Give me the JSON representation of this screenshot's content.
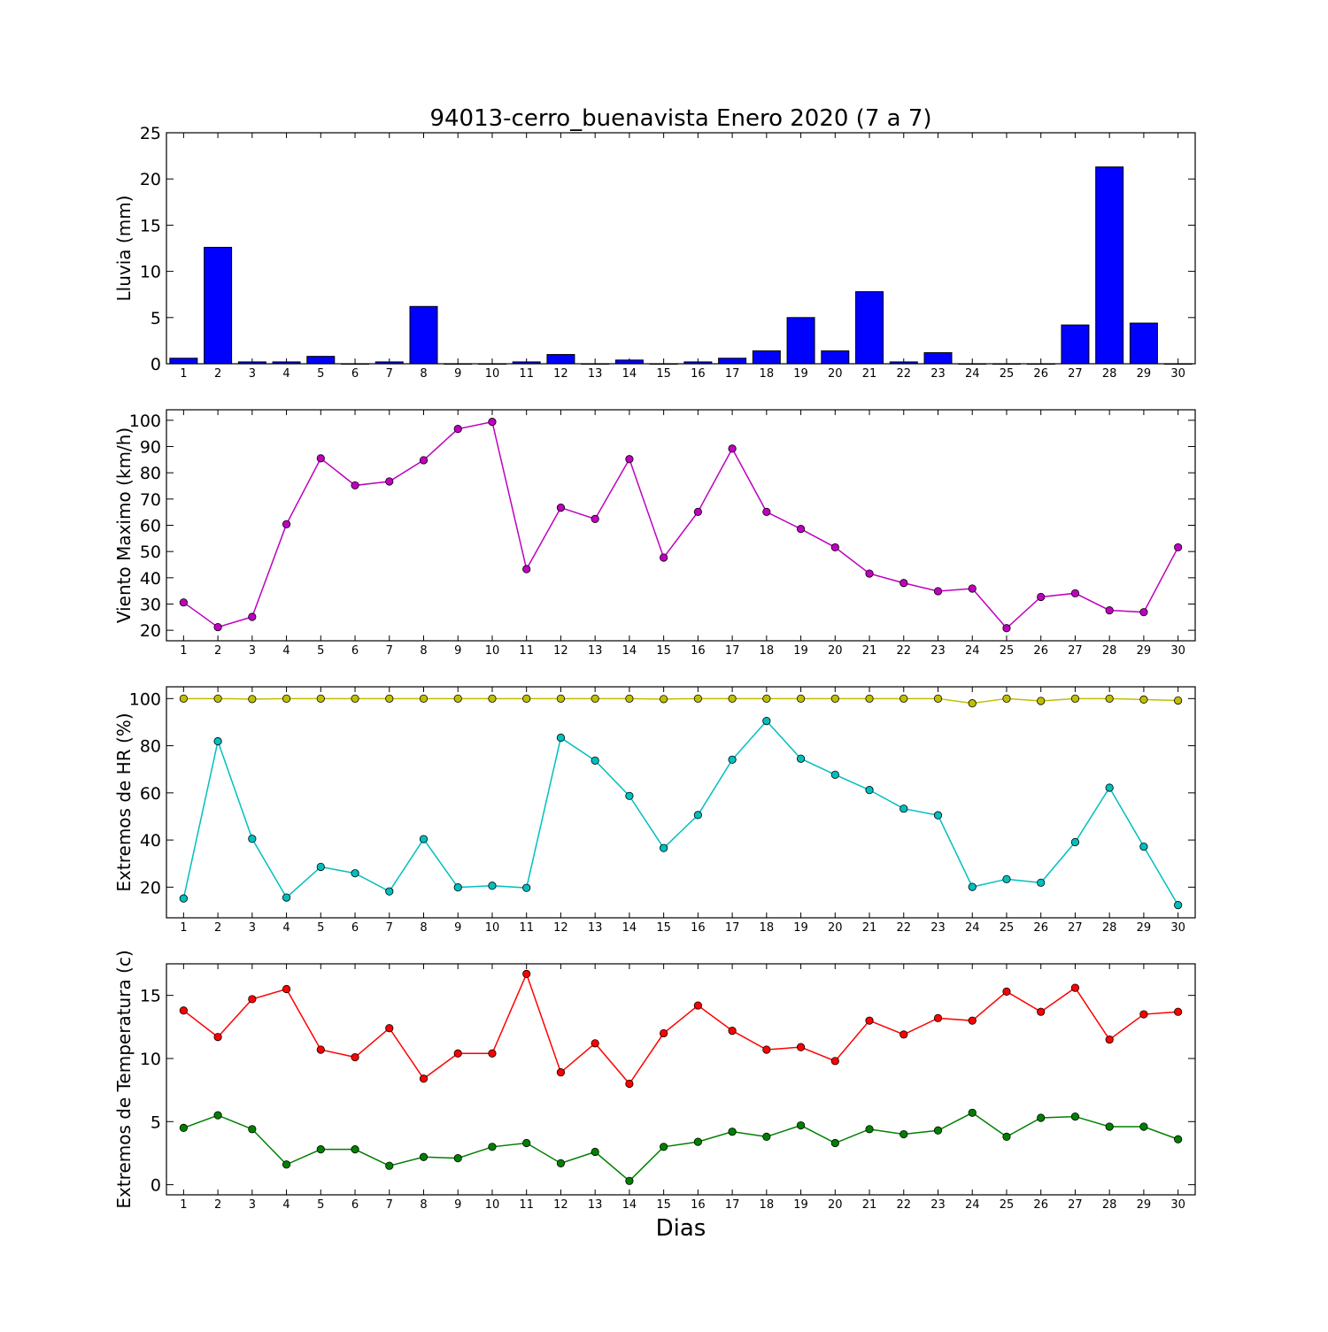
{
  "chart_data": {
    "title": "94013-cerro_buenavista Enero 2020  (7 a 7)",
    "xlabel": "Dias",
    "days": [
      1,
      2,
      3,
      4,
      5,
      6,
      7,
      8,
      9,
      10,
      11,
      12,
      13,
      14,
      15,
      16,
      17,
      18,
      19,
      20,
      21,
      22,
      23,
      24,
      25,
      26,
      27,
      28,
      29,
      30
    ],
    "panels": [
      {
        "type": "bar",
        "ylabel": "Lluvia (mm)",
        "ylim": [
          0,
          25
        ],
        "yticks": [
          0,
          5,
          10,
          15,
          20,
          25
        ],
        "series": [
          {
            "color": "#0000ff",
            "values": [
              0.6,
              12.6,
              0.2,
              0.2,
              0.8,
              0.0,
              0.2,
              6.2,
              0.0,
              0.0,
              0.2,
              1.0,
              0.0,
              0.4,
              0.0,
              0.2,
              0.6,
              1.4,
              5.0,
              1.4,
              7.8,
              0.2,
              1.2,
              0.0,
              0.0,
              0.0,
              4.2,
              21.3,
              4.4,
              0.0
            ]
          }
        ]
      },
      {
        "type": "line",
        "ylabel": "Viento Maximo (km/h)",
        "ylim": [
          16,
          104
        ],
        "yticks": [
          20,
          30,
          40,
          50,
          60,
          70,
          80,
          90,
          100
        ],
        "series": [
          {
            "color": "#bf00bf",
            "values": [
              30.6,
              21.2,
              25.1,
              60.4,
              85.5,
              75.2,
              76.7,
              84.8,
              96.7,
              99.4,
              43.3,
              66.7,
              62.4,
              85.2,
              47.7,
              65.1,
              89.2,
              65.1,
              58.6,
              51.6,
              41.6,
              38.0,
              34.9,
              35.9,
              20.8,
              32.7,
              34.1,
              27.6,
              26.9,
              51.6
            ]
          }
        ]
      },
      {
        "type": "line",
        "ylabel": "Extremos de HR (%)",
        "ylim": [
          7,
          105
        ],
        "yticks": [
          20,
          40,
          60,
          80,
          100
        ],
        "series": [
          {
            "color": "#bfbf00",
            "values": [
              100,
              100,
              99.8,
              100,
              100,
              100,
              100,
              100,
              100,
              100,
              100,
              100,
              100,
              100,
              99.8,
              100,
              100,
              100,
              100,
              100,
              100,
              100,
              100,
              98,
              100,
              99,
              100,
              100,
              99.6,
              99.2
            ]
          },
          {
            "color": "#00bfbf",
            "values": [
              15.2,
              81.9,
              40.5,
              15.6,
              28.6,
              25.9,
              18.2,
              40.4,
              19.9,
              20.6,
              19.7,
              83.4,
              73.7,
              58.7,
              36.6,
              50.6,
              74.1,
              90.5,
              74.5,
              67.7,
              61.2,
              53.3,
              50.5,
              20.1,
              23.4,
              21.9,
              39.1,
              62.2,
              37.2,
              12.4
            ]
          }
        ]
      },
      {
        "type": "line",
        "ylabel": "Extremos de Temperatura (c)",
        "ylim": [
          -0.8,
          17.5
        ],
        "yticks": [
          0,
          5,
          10,
          15
        ],
        "series": [
          {
            "color": "#ff0000",
            "values": [
              13.8,
              11.7,
              14.7,
              15.5,
              10.7,
              10.1,
              12.4,
              8.4,
              10.4,
              10.4,
              16.7,
              8.9,
              11.2,
              8.0,
              12.0,
              14.2,
              12.2,
              10.7,
              10.9,
              9.8,
              13.0,
              11.9,
              13.2,
              13.0,
              15.3,
              13.7,
              15.6,
              11.5,
              13.5,
              13.7
            ]
          },
          {
            "color": "#008000",
            "values": [
              4.5,
              5.5,
              4.4,
              1.6,
              2.8,
              2.8,
              1.5,
              2.2,
              2.1,
              3.0,
              3.3,
              1.7,
              2.6,
              0.3,
              3.0,
              3.4,
              4.2,
              3.8,
              4.7,
              3.3,
              4.4,
              4.0,
              4.3,
              5.7,
              3.8,
              5.3,
              5.4,
              4.6,
              4.6,
              3.6
            ]
          }
        ]
      }
    ]
  }
}
